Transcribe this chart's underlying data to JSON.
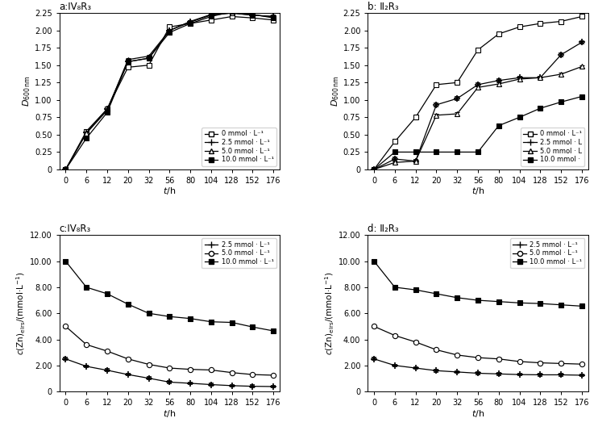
{
  "time_labels": [
    "0",
    "6",
    "12",
    "20",
    "32",
    "56",
    "80",
    "104",
    "128",
    "152",
    "176"
  ],
  "time_indices": [
    0,
    1,
    2,
    3,
    4,
    5,
    6,
    7,
    8,
    9,
    10
  ],
  "panel_a_title": "a:IV₈R₃",
  "panel_a_0": [
    0,
    0.55,
    0.87,
    1.47,
    1.5,
    2.05,
    2.1,
    2.15,
    2.2,
    2.18,
    2.15
  ],
  "panel_a_2p5": [
    0,
    0.53,
    0.87,
    1.55,
    1.6,
    2.0,
    2.12,
    2.22,
    2.25,
    2.22,
    2.2
  ],
  "panel_a_5": [
    0,
    0.52,
    0.85,
    1.58,
    1.63,
    2.0,
    2.13,
    2.23,
    2.25,
    2.22,
    2.2
  ],
  "panel_a_10": [
    0,
    0.45,
    0.82,
    1.55,
    1.6,
    1.97,
    2.1,
    2.2,
    2.27,
    2.23,
    2.18
  ],
  "panel_b_title": "b: Ⅱ₂R₃",
  "panel_b_0": [
    0,
    0.4,
    0.75,
    1.22,
    1.25,
    1.72,
    1.95,
    2.05,
    2.1,
    2.13,
    2.2
  ],
  "panel_b_2p5": [
    0,
    0.15,
    0.12,
    0.93,
    1.02,
    1.22,
    1.28,
    1.32,
    1.32,
    1.65,
    1.83
  ],
  "panel_b_5": [
    0,
    0.1,
    0.12,
    0.78,
    0.8,
    1.18,
    1.23,
    1.3,
    1.32,
    1.37,
    1.48
  ],
  "panel_b_10": [
    0,
    0.25,
    0.25,
    0.25,
    0.25,
    0.25,
    0.63,
    0.75,
    0.88,
    0.97,
    1.05
  ],
  "panel_c_title": "c:IV₈R₃",
  "panel_c_2p5": [
    2.5,
    1.93,
    1.63,
    1.3,
    1.02,
    0.72,
    0.63,
    0.53,
    0.45,
    0.4,
    0.38
  ],
  "panel_c_5": [
    5.0,
    3.6,
    3.1,
    2.5,
    2.08,
    1.8,
    1.7,
    1.65,
    1.45,
    1.3,
    1.25
  ],
  "panel_c_10": [
    10.0,
    8.0,
    7.5,
    6.7,
    6.0,
    5.75,
    5.6,
    5.35,
    5.3,
    4.95,
    4.65
  ],
  "panel_d_title": "d: Ⅱ₂R₃",
  "panel_d_2p5": [
    2.5,
    2.0,
    1.8,
    1.6,
    1.5,
    1.4,
    1.35,
    1.3,
    1.28,
    1.28,
    1.25
  ],
  "panel_d_5": [
    5.0,
    4.3,
    3.8,
    3.2,
    2.8,
    2.6,
    2.5,
    2.3,
    2.2,
    2.15,
    2.1
  ],
  "panel_d_10": [
    10.0,
    8.0,
    7.8,
    7.5,
    7.2,
    7.0,
    6.9,
    6.8,
    6.75,
    6.65,
    6.55
  ],
  "legend_a": [
    "0 mmol · L⁻¹",
    "2.5 mmol · L⁻¹",
    "5.0 mmol · L⁻¹",
    "10.0 mmol · L⁻¹"
  ],
  "legend_b": [
    "0 mmol · L⁻¹",
    "2.5 mmol · L",
    "5.0 mmol · L",
    "10.0 mmol ·"
  ],
  "legend_cd": [
    "2.5 mmol · L⁻¹",
    "5.0 mmol · L⁻¹",
    "10.0 mmol · L⁻¹"
  ],
  "yticks_ab": [
    0,
    0.25,
    0.5,
    0.75,
    1.0,
    1.25,
    1.5,
    1.75,
    2.0,
    2.25
  ],
  "ytick_ab_labels": [
    "0",
    "0.25",
    "0.50",
    "0.75",
    "1.00",
    "1.25",
    "1.50",
    "1.75",
    "2.00",
    "2.25"
  ],
  "yticks_cd": [
    0,
    2.0,
    4.0,
    6.0,
    8.0,
    10.0,
    12.0
  ],
  "ytick_cd_labels": [
    "0",
    "2.00",
    "4.00",
    "6.00",
    "8.00",
    "10.00",
    "12.00"
  ],
  "ylim_ab": [
    0,
    2.25
  ],
  "ylim_cd": [
    0,
    12.0
  ],
  "xlabel": "$t$/h",
  "ylabel_ab": "$D_{600\\,\\rm nm}$",
  "ylabel_cd": "$c$(Zn)$_{\\rm elrs}$/(mmol·L$^{-1}$)"
}
